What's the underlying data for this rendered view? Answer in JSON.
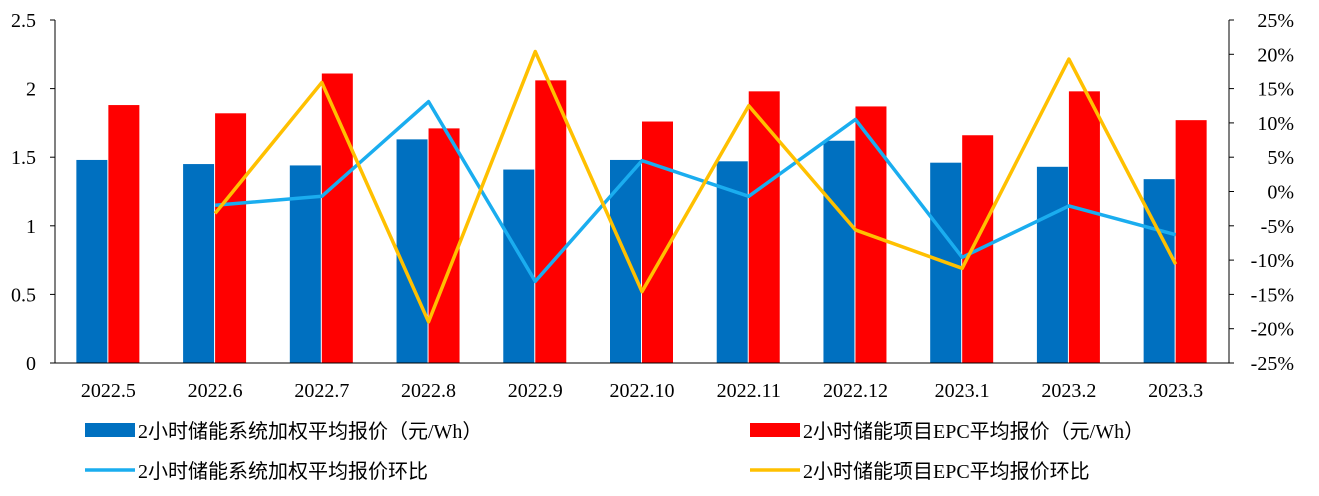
{
  "chart_data": {
    "type": "bar",
    "categories": [
      "2022.5",
      "2022.6",
      "2022.7",
      "2022.8",
      "2022.9",
      "2022.10",
      "2022.11",
      "2022.12",
      "2023.1",
      "2023.2",
      "2023.3"
    ],
    "series": [
      {
        "name": "2小时储能系统加权平均报价（元/Wh）",
        "type": "bar",
        "axis": "left",
        "color": "#0070C0",
        "values": [
          1.48,
          1.45,
          1.44,
          1.63,
          1.41,
          1.48,
          1.47,
          1.62,
          1.46,
          1.43,
          1.34
        ]
      },
      {
        "name": "2小时储能项目EPC平均报价（元/Wh）",
        "type": "bar",
        "axis": "left",
        "color": "#FF0000",
        "values": [
          1.88,
          1.82,
          2.11,
          1.71,
          2.06,
          1.76,
          1.98,
          1.87,
          1.66,
          1.98,
          1.77
        ]
      },
      {
        "name": "2小时储能系统加权平均报价环比",
        "type": "line",
        "axis": "right",
        "color": "#1AADEF",
        "values": [
          null,
          -2.0,
          -0.7,
          13.1,
          -13.1,
          4.5,
          -0.7,
          10.5,
          -9.6,
          -2.1,
          -6.3
        ]
      },
      {
        "name": "2小时储能项目EPC平均报价环比",
        "type": "line",
        "axis": "right",
        "color": "#FFC000",
        "values": [
          null,
          -3.2,
          15.9,
          -19.0,
          20.4,
          -14.6,
          12.5,
          -5.6,
          -11.2,
          19.3,
          -10.6
        ]
      }
    ],
    "ylim_left": [
      0,
      2.5
    ],
    "yticks_left": [
      "0",
      "0.5",
      "1",
      "1.5",
      "2",
      "2.5"
    ],
    "ylim_right": [
      -25,
      25
    ],
    "yticks_right": [
      "-25%",
      "-20%",
      "-15%",
      "-10%",
      "-5%",
      "0%",
      "5%",
      "10%",
      "15%",
      "20%",
      "25%"
    ],
    "legend_position": "bottom",
    "grid": false
  }
}
